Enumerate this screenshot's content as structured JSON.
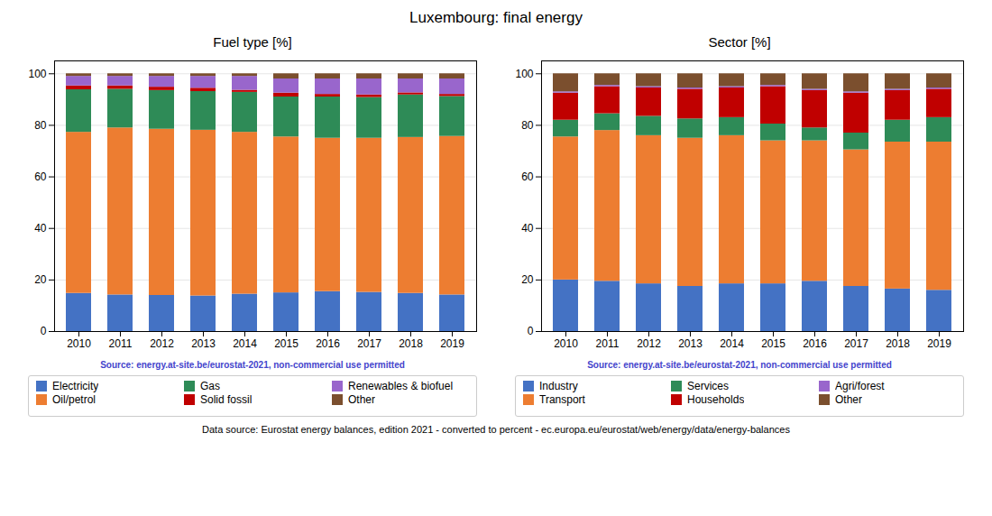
{
  "title": "Luxembourg: final energy",
  "annotations": [
    {
      "text": "Data source: Eurostat energy balances, edition 2021 - converted to percent - ec.europa.eu/eurostat/web/energy/data/energy-balances"
    }
  ],
  "chart_data": [
    {
      "type": "bar",
      "title": "Fuel type [%]",
      "stacked": true,
      "grid": true,
      "legend": "bottom",
      "categories": [
        "2010",
        "2011",
        "2012",
        "2013",
        "2014",
        "2015",
        "2016",
        "2017",
        "2018",
        "2019"
      ],
      "series": [
        {
          "name": "Electricity",
          "color": "#4472c4",
          "values": [
            14.8,
            14.2,
            14.0,
            13.8,
            14.5,
            15.0,
            15.5,
            15.2,
            14.8,
            14.2
          ]
        },
        {
          "name": "Oil/petrol",
          "color": "#ed7d31",
          "values": [
            62.5,
            64.8,
            64.5,
            64.3,
            62.8,
            60.5,
            59.5,
            59.8,
            60.5,
            61.5
          ]
        },
        {
          "name": "Gas",
          "color": "#2e8b57",
          "values": [
            16.5,
            15.0,
            15.0,
            15.0,
            15.5,
            15.5,
            16.0,
            15.8,
            16.5,
            15.5
          ]
        },
        {
          "name": "Solid fossil",
          "color": "#c00000",
          "values": [
            1.5,
            1.3,
            1.3,
            1.3,
            0.8,
            1.5,
            1.0,
            1.0,
            0.8,
            0.8
          ]
        },
        {
          "name": "Renewables & biofuel",
          "color": "#9966cc",
          "values": [
            3.7,
            3.7,
            4.2,
            4.6,
            5.4,
            5.5,
            6.0,
            6.2,
            5.4,
            6.0
          ]
        },
        {
          "name": "Other",
          "color": "#7b4f2e",
          "values": [
            1.0,
            1.0,
            1.0,
            1.0,
            1.0,
            2.0,
            2.0,
            2.0,
            2.0,
            2.0
          ]
        }
      ],
      "ylim": [
        0,
        105
      ],
      "yticks": [
        0,
        20,
        40,
        60,
        80,
        100
      ],
      "annotations": [
        {
          "text": "Source: energy.at-site.be/eurostat-2021, non-commercial use permitted",
          "color": "#4444cc"
        }
      ]
    },
    {
      "type": "bar",
      "title": "Sector [%]",
      "stacked": true,
      "grid": true,
      "legend": "bottom",
      "categories": [
        "2010",
        "2011",
        "2012",
        "2013",
        "2014",
        "2015",
        "2016",
        "2017",
        "2018",
        "2019"
      ],
      "series": [
        {
          "name": "Industry",
          "color": "#4472c4",
          "values": [
            20.0,
            19.5,
            18.5,
            17.5,
            18.5,
            18.5,
            19.5,
            17.5,
            16.5,
            16.0
          ]
        },
        {
          "name": "Transport",
          "color": "#ed7d31",
          "values": [
            55.5,
            58.5,
            57.5,
            57.5,
            57.5,
            55.5,
            54.5,
            53.0,
            57.0,
            57.5
          ]
        },
        {
          "name": "Services",
          "color": "#2e8b57",
          "values": [
            6.5,
            6.5,
            7.5,
            7.5,
            7.0,
            6.5,
            5.0,
            6.5,
            8.5,
            9.5
          ]
        },
        {
          "name": "Households",
          "color": "#c00000",
          "values": [
            10.5,
            10.5,
            11.0,
            11.5,
            11.5,
            14.5,
            14.5,
            15.5,
            11.5,
            11.0
          ]
        },
        {
          "name": "Agri/forest",
          "color": "#9966cc",
          "values": [
            0.5,
            0.5,
            0.5,
            0.5,
            0.5,
            0.5,
            0.5,
            0.5,
            0.5,
            0.5
          ]
        },
        {
          "name": "Other",
          "color": "#7b4f2e",
          "values": [
            7.0,
            4.5,
            5.0,
            5.5,
            5.0,
            4.5,
            6.0,
            7.0,
            6.0,
            5.5
          ]
        }
      ],
      "ylim": [
        0,
        105
      ],
      "yticks": [
        0,
        20,
        40,
        60,
        80,
        100
      ],
      "annotations": [
        {
          "text": "Source: energy.at-site.be/eurostat-2021, non-commercial use permitted",
          "color": "#4444cc"
        }
      ]
    }
  ]
}
